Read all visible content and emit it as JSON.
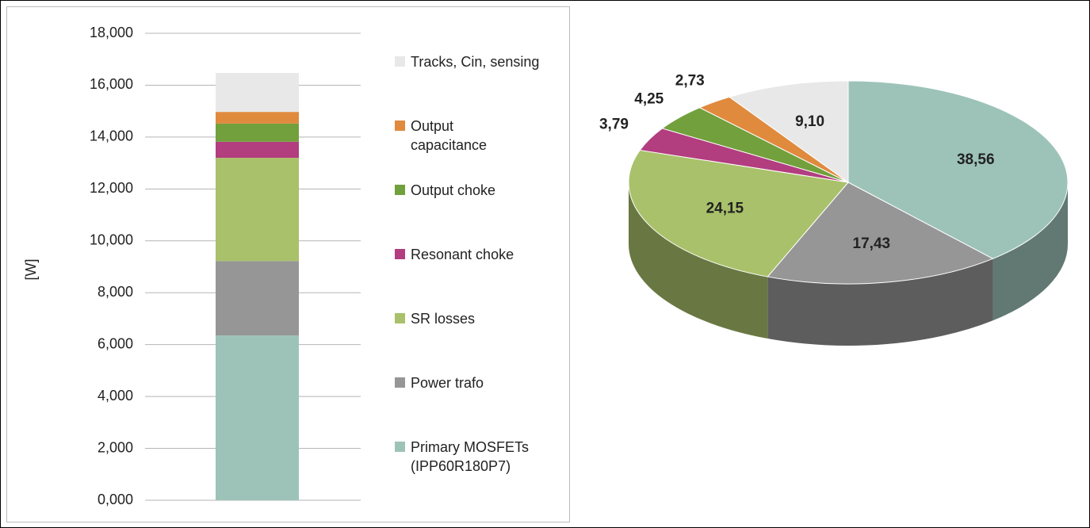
{
  "chart_data": [
    {
      "type": "bar",
      "stacked": true,
      "ylabel": "[W]",
      "categories": [
        null
      ],
      "series": [
        {
          "name": "Primary MOSFETs (IPP60R180P7)",
          "color": "#9dc3b8",
          "values": [
            6.35
          ]
        },
        {
          "name": "Power trafo",
          "color": "#969696",
          "values": [
            2.87
          ]
        },
        {
          "name": "SR losses",
          "color": "#a9c16a",
          "values": [
            3.98
          ]
        },
        {
          "name": "Resonant choke",
          "color": "#b23d7f",
          "values": [
            0.62
          ]
        },
        {
          "name": "Output choke",
          "color": "#72a03c",
          "values": [
            0.7
          ]
        },
        {
          "name": "Output capacitance",
          "color": "#e08a3e",
          "values": [
            0.45
          ]
        },
        {
          "name": "Tracks, Cin, sensing",
          "color": "#e8e8e8",
          "values": [
            1.5
          ]
        }
      ],
      "ylim": [
        0,
        18
      ],
      "yticks": [
        {
          "value": 0,
          "label": "0,000"
        },
        {
          "value": 2,
          "label": "2,000"
        },
        {
          "value": 4,
          "label": "4,000"
        },
        {
          "value": 6,
          "label": "6,000"
        },
        {
          "value": 8,
          "label": "8,000"
        },
        {
          "value": 10,
          "label": "10,000"
        },
        {
          "value": 12,
          "label": "12,000"
        },
        {
          "value": 14,
          "label": "14,000"
        },
        {
          "value": 16,
          "label": "16,000"
        },
        {
          "value": 18,
          "label": "18,000"
        }
      ],
      "grid": true
    },
    {
      "type": "pie3d",
      "values": [
        38.56,
        17.43,
        24.15,
        3.79,
        4.25,
        2.73,
        9.1
      ],
      "value_labels": [
        "38,56",
        "17,43",
        "24,15",
        "3,79",
        "4,25",
        "2,73",
        "9,10"
      ],
      "colors": [
        "#9dc3b8",
        "#969696",
        "#a9c16a",
        "#b23d7f",
        "#72a03c",
        "#e08a3e",
        "#e8e8e8"
      ]
    }
  ]
}
